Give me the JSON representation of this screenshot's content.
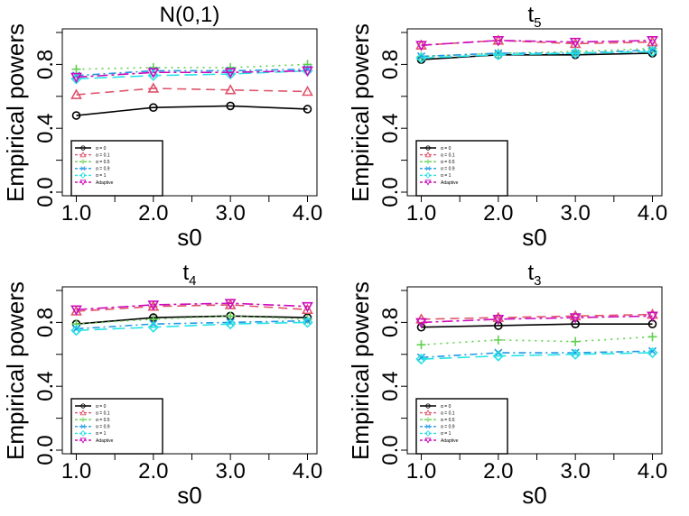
{
  "chart_data": [
    {
      "type": "line",
      "title": "N(0,1)",
      "title_main": "N(0,1)",
      "title_sub": "",
      "xlabel": "s0",
      "ylabel": "Empirical powers",
      "x": [
        1,
        2,
        3,
        4
      ],
      "xtick_labels": [
        "1.0",
        "2.0",
        "3.0",
        "4.0"
      ],
      "ytick_labels": [
        "0.0",
        "0.4",
        "0.8"
      ],
      "xlim": [
        1,
        4
      ],
      "ylim": [
        0,
        1
      ],
      "legend_position": "bottom-left",
      "series": [
        {
          "name": "α = 0",
          "values": [
            0.48,
            0.53,
            0.54,
            0.52
          ]
        },
        {
          "name": "α = 0.1",
          "values": [
            0.61,
            0.65,
            0.64,
            0.63
          ]
        },
        {
          "name": "α = 0.5",
          "values": [
            0.77,
            0.78,
            0.78,
            0.8
          ]
        },
        {
          "name": "α = 0.9",
          "values": [
            0.73,
            0.76,
            0.76,
            0.77
          ]
        },
        {
          "name": "α = 1",
          "values": [
            0.71,
            0.73,
            0.74,
            0.76
          ]
        },
        {
          "name": "Adaptive",
          "values": [
            0.72,
            0.75,
            0.75,
            0.76
          ]
        }
      ]
    },
    {
      "type": "line",
      "title": "t5",
      "title_main": "t",
      "title_sub": "5",
      "xlabel": "s0",
      "ylabel": "Empirical powers",
      "x": [
        1,
        2,
        3,
        4
      ],
      "xtick_labels": [
        "1.0",
        "2.0",
        "3.0",
        "4.0"
      ],
      "ytick_labels": [
        "0.0",
        "0.4",
        "0.8"
      ],
      "xlim": [
        1,
        4
      ],
      "ylim": [
        0,
        1
      ],
      "legend_position": "bottom-left",
      "series": [
        {
          "name": "α = 0",
          "values": [
            0.83,
            0.86,
            0.86,
            0.87
          ]
        },
        {
          "name": "α = 0.1",
          "values": [
            0.92,
            0.95,
            0.93,
            0.94
          ]
        },
        {
          "name": "α = 0.5",
          "values": [
            0.85,
            0.87,
            0.88,
            0.9
          ]
        },
        {
          "name": "α = 0.9",
          "values": [
            0.85,
            0.87,
            0.87,
            0.89
          ]
        },
        {
          "name": "α = 1",
          "values": [
            0.84,
            0.86,
            0.87,
            0.88
          ]
        },
        {
          "name": "Adaptive",
          "values": [
            0.92,
            0.95,
            0.94,
            0.95
          ]
        }
      ]
    },
    {
      "type": "line",
      "title": "t4",
      "title_main": "t",
      "title_sub": "4",
      "xlabel": "s0",
      "ylabel": "Empirical powers",
      "x": [
        1,
        2,
        3,
        4
      ],
      "xtick_labels": [
        "1.0",
        "2.0",
        "3.0",
        "4.0"
      ],
      "ytick_labels": [
        "0.0",
        "0.4",
        "0.8"
      ],
      "xlim": [
        1,
        4
      ],
      "ylim": [
        0,
        1
      ],
      "legend_position": "bottom-left",
      "series": [
        {
          "name": "α = 0",
          "values": [
            0.79,
            0.83,
            0.84,
            0.83
          ]
        },
        {
          "name": "α = 0.1",
          "values": [
            0.87,
            0.9,
            0.91,
            0.88
          ]
        },
        {
          "name": "α = 0.5",
          "values": [
            0.79,
            0.82,
            0.84,
            0.82
          ]
        },
        {
          "name": "α = 0.9",
          "values": [
            0.76,
            0.79,
            0.8,
            0.81
          ]
        },
        {
          "name": "α = 1",
          "values": [
            0.75,
            0.77,
            0.79,
            0.8
          ]
        },
        {
          "name": "Adaptive",
          "values": [
            0.88,
            0.91,
            0.92,
            0.9
          ]
        }
      ]
    },
    {
      "type": "line",
      "title": "t3",
      "title_main": "t",
      "title_sub": "3",
      "xlabel": "s0",
      "ylabel": "Empirical powers",
      "x": [
        1,
        2,
        3,
        4
      ],
      "xtick_labels": [
        "1.0",
        "2.0",
        "3.0",
        "4.0"
      ],
      "ytick_labels": [
        "0.0",
        "0.4",
        "0.8"
      ],
      "xlim": [
        1,
        4
      ],
      "ylim": [
        0,
        1
      ],
      "legend_position": "bottom-left",
      "series": [
        {
          "name": "α = 0",
          "values": [
            0.77,
            0.78,
            0.79,
            0.79
          ]
        },
        {
          "name": "α = 0.1",
          "values": [
            0.82,
            0.83,
            0.84,
            0.85
          ]
        },
        {
          "name": "α = 0.5",
          "values": [
            0.66,
            0.69,
            0.68,
            0.71
          ]
        },
        {
          "name": "α = 0.9",
          "values": [
            0.58,
            0.61,
            0.61,
            0.62
          ]
        },
        {
          "name": "α = 1",
          "values": [
            0.57,
            0.59,
            0.6,
            0.61
          ]
        },
        {
          "name": "Adaptive",
          "values": [
            0.8,
            0.82,
            0.83,
            0.84
          ]
        }
      ]
    }
  ],
  "series_styles": [
    {
      "color": "#000000",
      "dash": "",
      "marker": "circle"
    },
    {
      "color": "#DF536B",
      "dash": "10,6",
      "marker": "triangle"
    },
    {
      "color": "#61D04F",
      "dash": "2,5",
      "marker": "plus"
    },
    {
      "color": "#2297E6",
      "dash": "8,4,2,4",
      "marker": "cross"
    },
    {
      "color": "#28E2E5",
      "dash": "14,6",
      "marker": "diamond"
    },
    {
      "color": "#CD0BBC",
      "dash": "12,4,3,4",
      "marker": "triangle-down"
    }
  ]
}
